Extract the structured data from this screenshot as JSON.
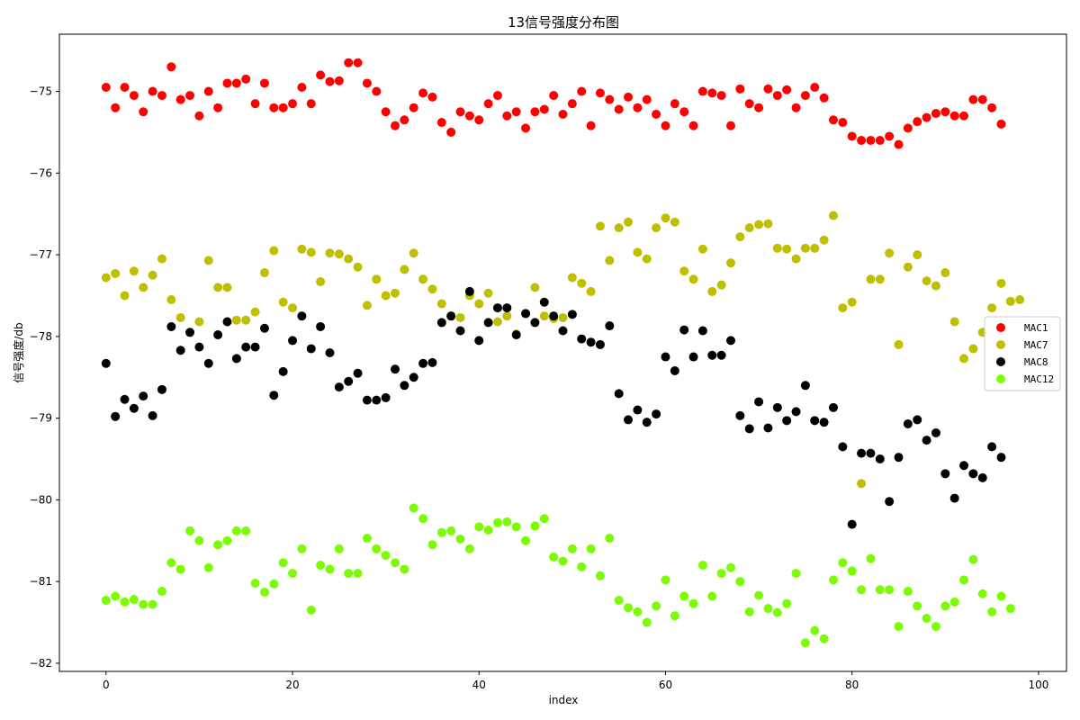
{
  "chart_data": {
    "type": "scatter",
    "title": "13信号强度分布图",
    "xlabel": "index",
    "ylabel": "信号强度/db",
    "xlim": [
      -5,
      103
    ],
    "ylim": [
      -82.1,
      -74.3
    ],
    "xticks": [
      0,
      20,
      40,
      60,
      80,
      100
    ],
    "yticks": [
      -82,
      -81,
      -80,
      -79,
      -78,
      -77,
      -76,
      -75
    ],
    "grid": false,
    "legend_position": "center-right",
    "series": [
      {
        "name": "MAC1",
        "color": "#ff0000",
        "x": [
          0,
          1,
          2,
          3,
          4,
          5,
          6,
          7,
          8,
          9,
          10,
          11,
          12,
          13,
          14,
          15,
          16,
          17,
          18,
          19,
          20,
          21,
          22,
          23,
          24,
          25,
          26,
          27,
          28,
          29,
          30,
          31,
          32,
          33,
          34,
          35,
          36,
          37,
          38,
          39,
          40,
          41,
          42,
          43,
          44,
          45,
          46,
          47,
          48,
          49,
          50,
          51,
          52,
          53,
          54,
          55,
          56,
          57,
          58,
          59,
          60,
          61,
          62,
          63,
          64,
          65,
          66,
          67,
          68,
          69,
          70,
          71,
          72,
          73,
          74,
          75,
          76,
          77,
          78,
          79,
          80,
          81,
          82,
          83,
          84,
          85,
          86,
          87,
          88,
          89,
          90,
          91,
          92,
          93,
          94,
          95,
          96
        ],
        "y": [
          -74.95,
          -75.2,
          -74.95,
          -75.05,
          -75.25,
          -75.0,
          -75.05,
          -74.7,
          -75.1,
          -75.05,
          -75.3,
          -75.0,
          -75.2,
          -74.9,
          -74.9,
          -74.85,
          -75.15,
          -74.9,
          -75.2,
          -75.2,
          -75.15,
          -74.95,
          -75.15,
          -74.8,
          -74.88,
          -74.87,
          -74.65,
          -74.65,
          -74.9,
          -75.0,
          -75.25,
          -75.42,
          -75.35,
          -75.2,
          -75.02,
          -75.07,
          -75.38,
          -75.5,
          -75.25,
          -75.3,
          -75.35,
          -75.15,
          -75.05,
          -75.3,
          -75.25,
          -75.45,
          -75.25,
          -75.22,
          -75.05,
          -75.28,
          -75.15,
          -75.0,
          -75.42,
          -75.02,
          -75.1,
          -75.22,
          -75.07,
          -75.2,
          -75.1,
          -75.28,
          -75.42,
          -75.15,
          -75.25,
          -75.42,
          -75.0,
          -75.02,
          -75.05,
          -75.42,
          -74.97,
          -75.15,
          -75.2,
          -74.97,
          -75.05,
          -74.98,
          -75.2,
          -75.05,
          -74.95,
          -75.08,
          -75.35,
          -75.38,
          -75.55,
          -75.6,
          -75.6,
          -75.6,
          -75.55,
          -75.65,
          -75.45,
          -75.37,
          -75.32,
          -75.27,
          -75.25,
          -75.3,
          -75.3,
          -75.1,
          -75.1,
          -75.2,
          -75.4
        ]
      },
      {
        "name": "MAC7",
        "color": "#bfbf00",
        "x": [
          0,
          1,
          2,
          3,
          4,
          5,
          6,
          7,
          8,
          9,
          10,
          11,
          12,
          13,
          14,
          15,
          16,
          17,
          18,
          19,
          20,
          21,
          22,
          23,
          24,
          25,
          26,
          27,
          28,
          29,
          30,
          31,
          32,
          33,
          34,
          35,
          36,
          37,
          38,
          39,
          40,
          41,
          42,
          43,
          44,
          45,
          46,
          47,
          48,
          49,
          50,
          51,
          52,
          53,
          54,
          55,
          56,
          57,
          58,
          59,
          60,
          61,
          62,
          63,
          64,
          65,
          66,
          67,
          68,
          69,
          70,
          71,
          72,
          73,
          74,
          75,
          76,
          77,
          78,
          79,
          80,
          81,
          82,
          83,
          84,
          85,
          86,
          87,
          88,
          89,
          90,
          91,
          92,
          93,
          94,
          95,
          96,
          97,
          98
        ],
        "y": [
          -77.28,
          -77.23,
          -77.5,
          -77.2,
          -77.4,
          -77.25,
          -77.05,
          -77.55,
          -77.77,
          -77.95,
          -77.82,
          -77.07,
          -77.4,
          -77.4,
          -77.8,
          -77.8,
          -77.7,
          -77.22,
          -76.95,
          -77.58,
          -77.65,
          -76.93,
          -76.97,
          -77.33,
          -76.98,
          -76.99,
          -77.05,
          -77.15,
          -77.62,
          -77.3,
          -77.5,
          -77.47,
          -77.18,
          -76.98,
          -77.3,
          -77.42,
          -77.6,
          -77.75,
          -77.77,
          -77.5,
          -77.6,
          -77.47,
          -77.82,
          -77.75,
          -77.97,
          -77.72,
          -77.4,
          -77.75,
          -77.78,
          -77.77,
          -77.28,
          -77.35,
          -77.45,
          -76.65,
          -77.07,
          -76.67,
          -76.6,
          -76.97,
          -77.05,
          -76.67,
          -76.55,
          -76.6,
          -77.2,
          -77.3,
          -76.93,
          -77.45,
          -77.37,
          -77.1,
          -76.78,
          -76.67,
          -76.63,
          -76.62,
          -76.92,
          -76.93,
          -77.05,
          -76.92,
          -76.92,
          -76.82,
          -76.52,
          -77.65,
          -77.58,
          -79.8,
          -77.3,
          -77.3,
          -76.98,
          -78.1,
          -77.15,
          -77.0,
          -77.32,
          -77.38,
          -77.22,
          -77.82,
          -78.27,
          -78.15,
          -77.95,
          -77.65,
          -77.35,
          -77.57,
          -77.55
        ]
      },
      {
        "name": "MAC8",
        "color": "#000000",
        "x": [
          0,
          1,
          2,
          3,
          4,
          5,
          6,
          7,
          8,
          9,
          10,
          11,
          12,
          13,
          14,
          15,
          16,
          17,
          18,
          19,
          20,
          21,
          22,
          23,
          24,
          25,
          26,
          27,
          28,
          29,
          30,
          31,
          32,
          33,
          34,
          35,
          36,
          37,
          38,
          39,
          40,
          41,
          42,
          43,
          44,
          45,
          46,
          47,
          48,
          49,
          50,
          51,
          52,
          53,
          54,
          55,
          56,
          57,
          58,
          59,
          60,
          61,
          62,
          63,
          64,
          65,
          66,
          67,
          68,
          69,
          70,
          71,
          72,
          73,
          74,
          75,
          76,
          77,
          78,
          79,
          80,
          81,
          82,
          83,
          84,
          85,
          86,
          87,
          88,
          89,
          90,
          91,
          92,
          93,
          94,
          95,
          96
        ],
        "y": [
          -78.33,
          -78.98,
          -78.77,
          -78.88,
          -78.73,
          -78.97,
          -78.65,
          -77.88,
          -78.17,
          -77.95,
          -78.13,
          -78.33,
          -77.98,
          -77.82,
          -78.27,
          -78.13,
          -78.13,
          -77.9,
          -78.72,
          -78.43,
          -78.05,
          -77.75,
          -78.15,
          -77.88,
          -78.2,
          -78.62,
          -78.55,
          -78.45,
          -78.78,
          -78.78,
          -78.75,
          -78.4,
          -78.6,
          -78.5,
          -78.33,
          -78.32,
          -77.83,
          -77.75,
          -77.93,
          -77.45,
          -78.05,
          -77.83,
          -77.65,
          -77.65,
          -77.98,
          -77.72,
          -77.83,
          -77.58,
          -77.75,
          -77.93,
          -77.73,
          -78.03,
          -78.07,
          -78.1,
          -77.87,
          -78.7,
          -79.02,
          -78.9,
          -79.05,
          -78.95,
          -78.25,
          -78.42,
          -77.92,
          -78.25,
          -77.93,
          -78.23,
          -78.23,
          -78.05,
          -78.97,
          -79.13,
          -78.8,
          -79.12,
          -78.87,
          -79.03,
          -78.92,
          -78.6,
          -79.03,
          -79.05,
          -78.87,
          -79.35,
          -80.3,
          -79.43,
          -79.43,
          -79.5,
          -80.02,
          -79.48,
          -79.07,
          -79.02,
          -79.27,
          -79.18,
          -79.68,
          -79.98,
          -79.58,
          -79.68,
          -79.73,
          -79.35,
          -79.48
        ]
      },
      {
        "name": "MAC12",
        "color": "#7cfc00",
        "x": [
          0,
          1,
          2,
          3,
          4,
          5,
          6,
          7,
          8,
          9,
          10,
          11,
          12,
          13,
          14,
          15,
          16,
          17,
          18,
          19,
          20,
          21,
          22,
          23,
          24,
          25,
          26,
          27,
          28,
          29,
          30,
          31,
          32,
          33,
          34,
          35,
          36,
          37,
          38,
          39,
          40,
          41,
          42,
          43,
          44,
          45,
          46,
          47,
          48,
          49,
          50,
          51,
          52,
          53,
          54,
          55,
          56,
          57,
          58,
          59,
          60,
          61,
          62,
          63,
          64,
          65,
          66,
          67,
          68,
          69,
          70,
          71,
          72,
          73,
          74,
          75,
          76,
          77,
          78,
          79,
          80,
          81,
          82,
          83,
          84,
          85,
          86,
          87,
          88,
          89,
          90,
          91,
          92,
          93,
          94,
          95,
          96,
          97
        ],
        "y": [
          -81.23,
          -81.18,
          -81.25,
          -81.22,
          -81.28,
          -81.28,
          -81.12,
          -80.77,
          -80.85,
          -80.38,
          -80.5,
          -80.83,
          -80.55,
          -80.5,
          -80.38,
          -80.38,
          -81.02,
          -81.13,
          -81.03,
          -80.77,
          -80.9,
          -80.6,
          -81.35,
          -80.8,
          -80.85,
          -80.6,
          -80.9,
          -80.9,
          -80.47,
          -80.6,
          -80.68,
          -80.77,
          -80.85,
          -80.1,
          -80.23,
          -80.55,
          -80.4,
          -80.38,
          -80.48,
          -80.6,
          -80.33,
          -80.37,
          -80.28,
          -80.27,
          -80.33,
          -80.5,
          -80.32,
          -80.23,
          -80.7,
          -80.75,
          -80.6,
          -80.82,
          -80.6,
          -80.93,
          -80.47,
          -81.23,
          -81.32,
          -81.37,
          -81.5,
          -81.3,
          -80.98,
          -81.42,
          -81.18,
          -81.27,
          -80.8,
          -81.18,
          -80.9,
          -80.83,
          -81.0,
          -81.37,
          -81.17,
          -81.33,
          -81.38,
          -81.27,
          -80.9,
          -81.75,
          -81.6,
          -81.7,
          -80.98,
          -80.77,
          -80.87,
          -81.1,
          -80.72,
          -81.1,
          -81.1,
          -81.55,
          -81.12,
          -81.3,
          -81.45,
          -81.55,
          -81.3,
          -81.25,
          -80.98,
          -80.73,
          -81.15,
          -81.37,
          -81.18,
          -81.33
        ]
      }
    ]
  }
}
